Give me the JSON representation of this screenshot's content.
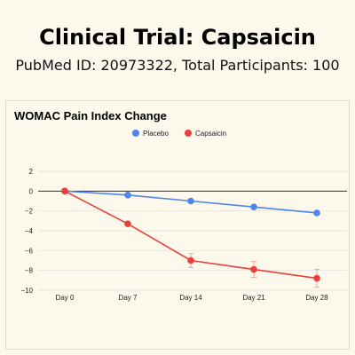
{
  "header": {
    "title": "Clinical Trial: Capsaicin",
    "subtitle": "PubMed ID: 20973322, Total Participants: 100"
  },
  "colors": {
    "placebo": "#4f86e8",
    "capsaicin": "#e8413c",
    "capsaicin_error": "#f0a8a4"
  },
  "chart_data": {
    "type": "line",
    "title": "WOMAC Pain Index Change",
    "xlabel": "",
    "ylabel": "",
    "categories": [
      "Day 0",
      "Day 7",
      "Day 14",
      "Day 21",
      "Day 28"
    ],
    "ylim": [
      -10,
      2
    ],
    "yticks": [
      2,
      0,
      -2,
      -4,
      -6,
      -8,
      -10
    ],
    "grid": true,
    "legend_position": "top-center",
    "series": [
      {
        "name": "Placebo",
        "color": "#4f86e8",
        "values": [
          0,
          -0.4,
          -1.0,
          -1.6,
          -2.2
        ],
        "errors": [
          0,
          0,
          0,
          0,
          0
        ]
      },
      {
        "name": "Capsaicin",
        "color": "#e8413c",
        "values": [
          0,
          -3.3,
          -7.0,
          -7.9,
          -8.8
        ],
        "errors": [
          0,
          0,
          0.7,
          0.8,
          0.9
        ]
      }
    ]
  }
}
